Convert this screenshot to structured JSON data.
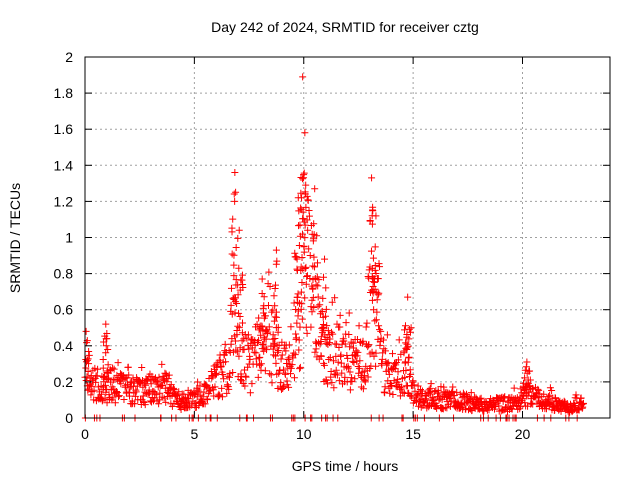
{
  "chart_data": {
    "type": "scatter",
    "title": "Day 242 of 2024, SRMTID for receiver cztg",
    "xlabel": "GPS time / hours",
    "ylabel": "SRMTID / TECUs",
    "xlim": [
      0,
      24
    ],
    "ylim": [
      0,
      2
    ],
    "xticks": [
      0,
      5,
      10,
      15,
      20
    ],
    "yticks": [
      0,
      0.2,
      0.4,
      0.6,
      0.8,
      1,
      1.2,
      1.4,
      1.6,
      1.8,
      2
    ],
    "ytick_labels": [
      "0",
      "0.2",
      "0.4",
      "0.6",
      "0.8",
      "1",
      "1.2",
      "1.4",
      "1.6",
      "1.8",
      "2"
    ],
    "grid": true,
    "marker": "plus",
    "color": "#ff0000",
    "series": [
      {
        "name": "SRMTID",
        "profile_x": [
          0.0,
          0.1,
          0.3,
          0.5,
          0.8,
          1.0,
          1.2,
          1.5,
          2.0,
          2.5,
          3.0,
          3.5,
          3.8,
          4.0,
          4.3,
          4.6,
          5.0,
          5.3,
          5.6,
          5.9,
          6.2,
          6.5,
          6.7,
          6.9,
          7.1,
          7.3,
          7.6,
          7.9,
          8.1,
          8.3,
          8.6,
          8.9,
          9.1,
          9.3,
          9.6,
          9.8,
          9.9,
          10.0,
          10.2,
          10.4,
          10.6,
          10.9,
          11.2,
          11.6,
          12.0,
          12.4,
          12.7,
          13.0,
          13.2,
          13.4,
          13.6,
          13.8,
          14.1,
          14.4,
          14.7,
          14.9,
          15.1,
          15.5,
          16.0,
          16.5,
          17.0,
          17.5,
          18.0,
          18.5,
          19.0,
          19.5,
          20.0,
          20.3,
          20.6,
          20.9,
          21.3,
          21.7,
          22.1,
          22.5,
          22.8
        ],
        "profile_y": [
          0.28,
          0.26,
          0.22,
          0.2,
          0.17,
          0.18,
          0.2,
          0.18,
          0.17,
          0.15,
          0.16,
          0.17,
          0.18,
          0.12,
          0.1,
          0.09,
          0.11,
          0.13,
          0.17,
          0.2,
          0.24,
          0.3,
          0.45,
          0.55,
          0.4,
          0.33,
          0.3,
          0.38,
          0.45,
          0.5,
          0.42,
          0.34,
          0.3,
          0.32,
          0.4,
          0.55,
          0.7,
          0.85,
          0.9,
          0.8,
          0.55,
          0.45,
          0.38,
          0.36,
          0.34,
          0.3,
          0.3,
          0.45,
          0.6,
          0.55,
          0.35,
          0.25,
          0.22,
          0.24,
          0.28,
          0.2,
          0.13,
          0.12,
          0.11,
          0.1,
          0.1,
          0.09,
          0.08,
          0.08,
          0.08,
          0.08,
          0.12,
          0.14,
          0.12,
          0.1,
          0.09,
          0.07,
          0.06,
          0.08,
          0.12
        ],
        "peaks": [
          {
            "x": 0.05,
            "y": 0.48
          },
          {
            "x": 0.95,
            "y": 0.52
          },
          {
            "x": 6.85,
            "y": 1.36
          },
          {
            "x": 7.05,
            "y": 1.04
          },
          {
            "x": 8.1,
            "y": 0.77
          },
          {
            "x": 8.75,
            "y": 0.93
          },
          {
            "x": 9.75,
            "y": 1.22
          },
          {
            "x": 9.95,
            "y": 1.89
          },
          {
            "x": 10.05,
            "y": 1.58
          },
          {
            "x": 10.5,
            "y": 1.27
          },
          {
            "x": 10.95,
            "y": 0.88
          },
          {
            "x": 13.1,
            "y": 1.33
          },
          {
            "x": 13.3,
            "y": 1.12
          },
          {
            "x": 14.75,
            "y": 0.67
          },
          {
            "x": 20.2,
            "y": 0.31
          }
        ]
      }
    ]
  }
}
